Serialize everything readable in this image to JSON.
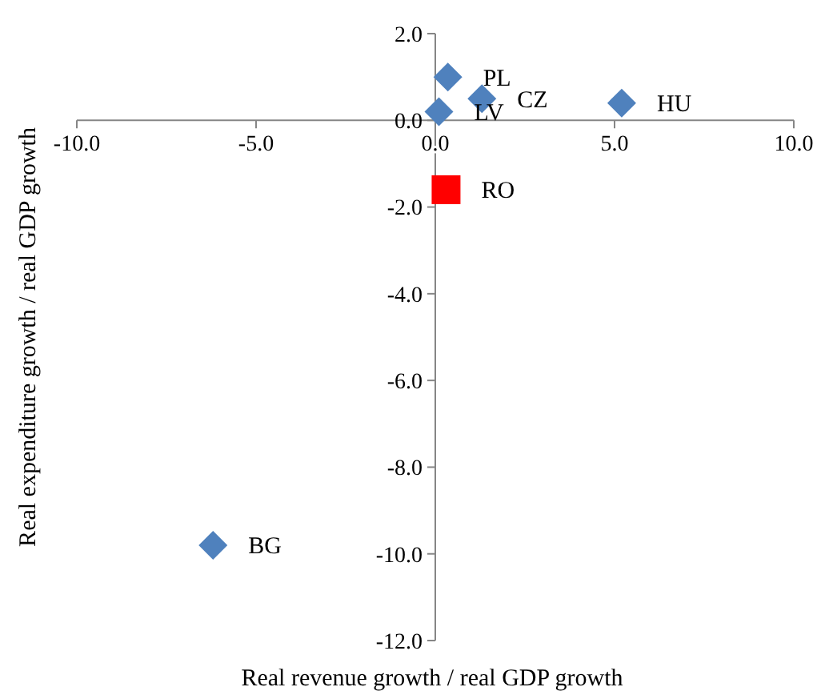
{
  "chart_data": {
    "type": "scatter",
    "xlabel": "Real revenue growth / real GDP growth",
    "ylabel": "Real expenditure growth / real GDP growth",
    "xlim": [
      -10,
      10
    ],
    "ylim": [
      -12,
      2
    ],
    "xticks": [
      {
        "value": -10,
        "label": "-10.0"
      },
      {
        "value": -5,
        "label": "-5.0"
      },
      {
        "value": 0,
        "label": "0.0"
      },
      {
        "value": 5,
        "label": "5.0"
      },
      {
        "value": 10,
        "label": "10.0"
      }
    ],
    "yticks": [
      {
        "value": -12,
        "label": "-12.0"
      },
      {
        "value": -10,
        "label": "-10.0"
      },
      {
        "value": -8,
        "label": "-8.0"
      },
      {
        "value": -6,
        "label": "-6.0"
      },
      {
        "value": -4,
        "label": "-4.0"
      },
      {
        "value": -2,
        "label": "-2.0"
      },
      {
        "value": 0,
        "label": "0.0"
      },
      {
        "value": 2,
        "label": "2.0"
      }
    ],
    "series": [
      {
        "color": "#4f81bd",
        "marker": "diamond",
        "x": [
          0.35,
          1.3,
          0.1,
          5.2,
          -6.2
        ],
        "values": [
          1.0,
          0.5,
          0.2,
          0.4,
          -9.8
        ]
      },
      {
        "color": "#ff0000",
        "marker": "square",
        "x": [
          0.3
        ],
        "values": [
          -1.6
        ]
      }
    ],
    "annotations": [
      {
        "text": "PL",
        "x": 0.35,
        "y": 1.0
      },
      {
        "text": "CZ",
        "x": 1.3,
        "y": 0.5
      },
      {
        "text": "LV",
        "x": 0.1,
        "y": 0.2
      },
      {
        "text": "HU",
        "x": 5.2,
        "y": 0.4
      },
      {
        "text": "RO",
        "x": 0.3,
        "y": -1.6
      },
      {
        "text": "BG",
        "x": -6.2,
        "y": -9.8
      }
    ]
  }
}
